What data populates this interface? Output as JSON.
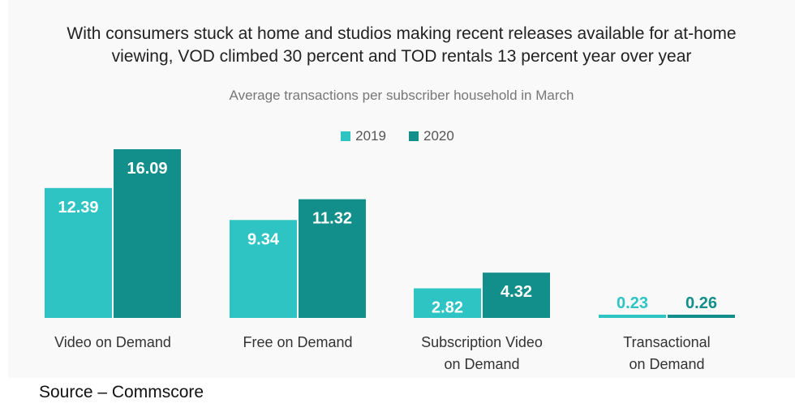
{
  "title_lines": [
    "With consumers stuck at home and studios making recent releases available for at-home",
    "viewing, VOD climbed 30 percent and TOD rentals 13 percent year over year"
  ],
  "source": "Source – Commscore",
  "colors": {
    "panel": "#f9f9f9"
  },
  "chart_data": {
    "type": "bar",
    "title": "With consumers stuck at home and studios making recent releases available for at-home viewing, VOD climbed 30 percent and TOD rentals 13 percent year over year",
    "subtitle": "Average transactions per subscriber household in March",
    "categories": [
      [
        "Video on Demand"
      ],
      [
        "Free on Demand"
      ],
      [
        "Subscription Video",
        "on Demand"
      ],
      [
        "Transactional",
        "on Demand"
      ]
    ],
    "series": [
      {
        "name": "2019",
        "color": "#2ec4c4",
        "values": [
          12.39,
          9.34,
          2.82,
          0.23
        ],
        "labels": [
          "12.39",
          "9.34",
          "2.82",
          "0.23"
        ]
      },
      {
        "name": "2020",
        "color": "#138f8b",
        "values": [
          16.09,
          11.32,
          4.32,
          0.26
        ],
        "labels": [
          "16.09",
          "11.32",
          "4.32",
          "0.26"
        ]
      }
    ],
    "ylim": [
      0,
      16.09
    ],
    "legend_position": "top-center",
    "grid": false,
    "data_labels": true
  }
}
